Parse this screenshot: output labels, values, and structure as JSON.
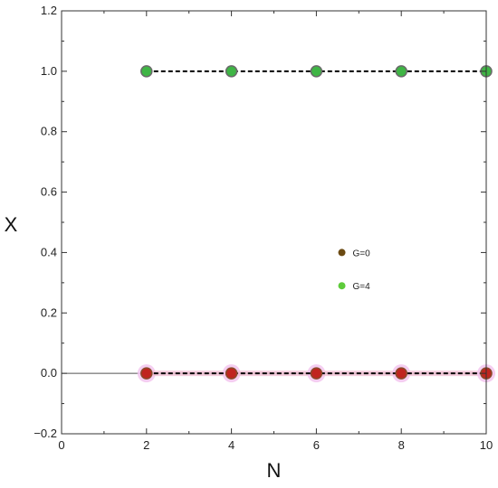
{
  "chart_data": {
    "type": "scatter",
    "title": "",
    "xlabel": "N",
    "ylabel": "X",
    "xlim": [
      0,
      10
    ],
    "ylim": [
      -0.2,
      1.2
    ],
    "xticks": [
      "0",
      "2",
      "4",
      "6",
      "8",
      "10"
    ],
    "yticks": [
      "−0.2",
      "0.0",
      "0.2",
      "0.4",
      "0.6",
      "0.8",
      "1.0",
      "1.2"
    ],
    "grid": false,
    "legend_position": "center-right",
    "legend": [
      {
        "label": "G=0",
        "color": "#6b4a12"
      },
      {
        "label": "G=4",
        "color": "#5ecb3b"
      }
    ],
    "series": [
      {
        "x": [
          2,
          4,
          6,
          8,
          10
        ],
        "y": [
          1.0,
          1.0,
          1.0,
          1.0,
          1.0
        ],
        "marker_color": "#3fb545",
        "marker_edge": "#6a6a6a",
        "style": "points"
      },
      {
        "x": [
          2,
          4,
          6,
          8,
          10
        ],
        "y": [
          0.0,
          0.0,
          0.0,
          0.0,
          0.0
        ],
        "marker_color": "#c0251f",
        "marker_edge": "#8a4a2a",
        "style": "points"
      },
      {
        "x": [
          2,
          10
        ],
        "y": [
          1.0,
          1.0
        ],
        "line_color": "#000000",
        "style": "dashed"
      },
      {
        "x": [
          2,
          10
        ],
        "y": [
          0.0,
          0.0
        ],
        "line_color": "#000000",
        "style": "dashed"
      },
      {
        "x": [
          0,
          10
        ],
        "y": [
          0.0,
          0.0
        ],
        "line_color": "#555555",
        "style": "thin"
      }
    ]
  }
}
